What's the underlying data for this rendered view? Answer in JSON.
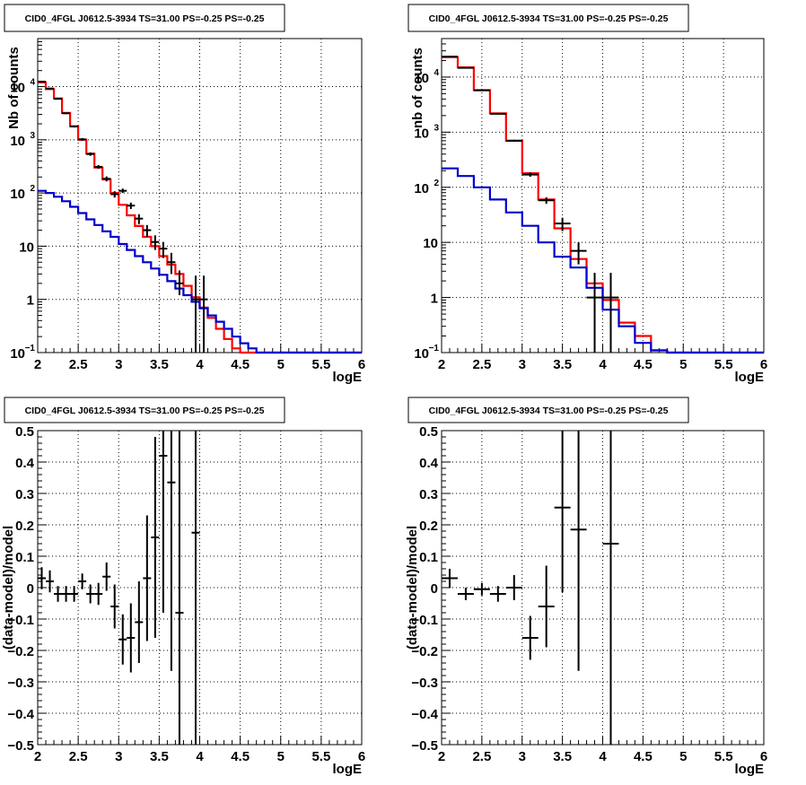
{
  "chart_data": [
    {
      "type": "line",
      "title": "CID0_4FGL J0612.5-3934 TS=31.00 PS=-0.25 PS=-0.25",
      "xlabel": "logE",
      "ylabel": "Nb of counts",
      "xlim": [
        2,
        6
      ],
      "ylim": [
        0.1,
        80000
      ],
      "yscale": "log",
      "grid": true,
      "x_ticks": [
        "2",
        "2.5",
        "3",
        "3.5",
        "4",
        "4.5",
        "5",
        "5.5",
        "6"
      ],
      "y_ticks": [
        {
          "value": 0.1,
          "label": "10",
          "exp": "−1"
        },
        {
          "value": 1,
          "label": "1",
          "exp": ""
        },
        {
          "value": 10,
          "label": "10",
          "exp": ""
        },
        {
          "value": 100,
          "label": "10",
          "exp": "2"
        },
        {
          "value": 1000,
          "label": "10",
          "exp": "3"
        },
        {
          "value": 10000,
          "label": "10",
          "exp": "4"
        }
      ],
      "bin_edges": [
        2.0,
        2.1,
        2.2,
        2.3,
        2.4,
        2.5,
        2.6,
        2.7,
        2.8,
        2.9,
        3.0,
        3.1,
        3.2,
        3.3,
        3.4,
        3.5,
        3.6,
        3.7,
        3.8,
        3.9,
        4.0,
        4.1,
        4.2,
        4.3,
        4.4,
        4.5,
        4.6,
        4.7,
        4.8,
        4.9,
        5.0,
        5.1,
        5.2,
        5.3,
        5.4,
        5.5,
        5.6,
        5.7,
        5.8,
        5.9,
        6.0
      ],
      "series": [
        {
          "style": "step",
          "color": "#ff0000",
          "values": [
            12000,
            9000,
            6000,
            3200,
            1800,
            1000,
            550,
            300,
            180,
            100,
            60,
            38,
            24,
            15,
            10,
            6.5,
            4.5,
            3,
            1.8,
            1.1,
            0.7,
            0.45,
            0.28,
            0.18,
            0.12,
            0.1,
            0.1,
            0.1,
            0.1,
            0.1,
            0.1,
            0.1,
            0.1,
            0.1,
            0.1,
            0.1,
            0.1,
            0.1,
            0.1,
            0.1
          ]
        },
        {
          "style": "step",
          "color": "#0000cc",
          "values": [
            110,
            100,
            85,
            70,
            55,
            42,
            32,
            25,
            19,
            15,
            11,
            8.5,
            6.5,
            5,
            3.8,
            2.9,
            2.2,
            1.6,
            1.2,
            0.9,
            0.68,
            0.5,
            0.38,
            0.28,
            0.2,
            0.15,
            0.12,
            0.1,
            0.1,
            0.1,
            0.1,
            0.1,
            0.1,
            0.1,
            0.1,
            0.1,
            0.1,
            0.1,
            0.1,
            0.1
          ]
        },
        {
          "style": "points",
          "color": "#000000",
          "x": [
            2.05,
            2.15,
            2.25,
            2.35,
            2.45,
            2.55,
            2.65,
            2.75,
            2.85,
            2.95,
            3.05,
            3.15,
            3.25,
            3.35,
            3.45,
            3.55,
            3.65,
            3.75,
            3.95,
            4.05
          ],
          "y": [
            12400,
            9200,
            5900,
            3150,
            1780,
            1020,
            540,
            310,
            185,
            95,
            110,
            58,
            33,
            20,
            12,
            9,
            5,
            2,
            1,
            1
          ],
          "err_lo": [
            12200,
            9000,
            5750,
            3040,
            1700,
            960,
            500,
            285,
            165,
            82,
            100,
            50,
            26,
            15,
            8.5,
            6,
            3,
            1.2,
            1,
            1
          ],
          "err_hi": [
            12600,
            9400,
            6050,
            3260,
            1860,
            1080,
            580,
            335,
            205,
            108,
            121,
            66,
            40,
            25,
            16,
            12,
            7.5,
            3.5,
            2.8,
            2.8
          ]
        }
      ]
    },
    {
      "type": "line",
      "title": "CID0_4FGL J0612.5-3934 TS=31.00 PS=-0.25 PS=-0.25",
      "xlabel": "logE",
      "ylabel": "nb of counts",
      "xlim": [
        2,
        6
      ],
      "ylim": [
        0.1,
        50000
      ],
      "yscale": "log",
      "grid": true,
      "x_ticks": [
        "2",
        "2.5",
        "3",
        "3.5",
        "4",
        "4.5",
        "5",
        "5.5",
        "6"
      ],
      "y_ticks": [
        {
          "value": 0.1,
          "label": "10",
          "exp": "−1"
        },
        {
          "value": 1,
          "label": "1",
          "exp": ""
        },
        {
          "value": 10,
          "label": "10",
          "exp": ""
        },
        {
          "value": 100,
          "label": "10",
          "exp": "2"
        },
        {
          "value": 1000,
          "label": "10",
          "exp": "3"
        },
        {
          "value": 10000,
          "label": "10",
          "exp": "4"
        }
      ],
      "bin_edges": [
        2.0,
        2.2,
        2.4,
        2.6,
        2.8,
        3.0,
        3.2,
        3.4,
        3.6,
        3.8,
        4.0,
        4.2,
        4.4,
        4.6,
        4.8,
        5.0,
        5.2,
        5.4,
        5.6,
        5.8,
        6.0
      ],
      "series": [
        {
          "style": "step",
          "color": "#ff0000",
          "values": [
            23000,
            15000,
            5800,
            2200,
            700,
            180,
            60,
            18,
            5,
            1.8,
            0.9,
            0.35,
            0.2,
            0.11,
            0.1,
            0.1,
            0.1,
            0.1,
            0.1,
            0.1
          ]
        },
        {
          "style": "step",
          "color": "#0000cc",
          "values": [
            220,
            160,
            100,
            60,
            35,
            20,
            10,
            5.5,
            3.5,
            1.5,
            0.6,
            0.3,
            0.15,
            0.11,
            0.1,
            0.1,
            0.1,
            0.1,
            0.1,
            0.1
          ]
        },
        {
          "style": "points",
          "color": "#000000",
          "x": [
            2.1,
            2.3,
            2.5,
            2.7,
            2.9,
            3.1,
            3.3,
            3.5,
            3.7,
            3.9,
            4.1
          ],
          "y": [
            23500,
            14700,
            5750,
            2150,
            700,
            170,
            58,
            22,
            7,
            1,
            1
          ],
          "err_lo": [
            23300,
            14500,
            5650,
            2090,
            670,
            155,
            50,
            16,
            4,
            1,
            1
          ],
          "err_hi": [
            23700,
            14900,
            5850,
            2210,
            730,
            185,
            66,
            28,
            10,
            2.8,
            2.8
          ]
        }
      ]
    },
    {
      "type": "scatter",
      "title": "CID0_4FGL J0612.5-3934 TS=31.00 PS=-0.25 PS=-0.25",
      "xlabel": "logE",
      "ylabel": "(data-model)/model",
      "xlim": [
        2,
        6
      ],
      "ylim": [
        -0.5,
        0.5
      ],
      "grid": true,
      "x_ticks": [
        "2",
        "2.5",
        "3",
        "3.5",
        "4",
        "4.5",
        "5",
        "5.5",
        "6"
      ],
      "y_ticks": [
        "−0.5",
        "−0.4",
        "−0.3",
        "−0.2",
        "−0.1",
        "0",
        "0.1",
        "0.2",
        "0.3",
        "0.4",
        "0.5"
      ],
      "series": [
        {
          "style": "points",
          "color": "#000000",
          "x": [
            2.05,
            2.15,
            2.25,
            2.35,
            2.45,
            2.55,
            2.65,
            2.75,
            2.85,
            2.95,
            3.05,
            3.15,
            3.25,
            3.35,
            3.45,
            3.55,
            3.65,
            3.75,
            3.95
          ],
          "y": [
            0.03,
            0.02,
            -0.02,
            -0.02,
            -0.02,
            0.02,
            -0.02,
            -0.02,
            0.035,
            -0.06,
            -0.165,
            -0.16,
            -0.11,
            0.03,
            0.16,
            0.42,
            0.335,
            -0.08,
            0.175
          ],
          "err": [
            0.035,
            0.035,
            0.025,
            0.025,
            0.025,
            0.025,
            0.03,
            0.035,
            0.045,
            0.07,
            0.08,
            0.11,
            0.13,
            0.2,
            0.32,
            0.5,
            0.6,
            0.9,
            1.0
          ]
        }
      ]
    },
    {
      "type": "scatter",
      "title": "CID0_4FGL J0612.5-3934 TS=31.00 PS=-0.25 PS=-0.25",
      "xlabel": "logE",
      "ylabel": "(data-model)/model",
      "xlim": [
        2,
        6
      ],
      "ylim": [
        -0.5,
        0.5
      ],
      "grid": true,
      "x_ticks": [
        "2",
        "2.5",
        "3",
        "3.5",
        "4",
        "4.5",
        "5",
        "5.5",
        "6"
      ],
      "y_ticks": [
        "−0.5",
        "−0.4",
        "−0.3",
        "−0.2",
        "−0.1",
        "0",
        "0.1",
        "0.2",
        "0.3",
        "0.4",
        "0.5"
      ],
      "series": [
        {
          "style": "points",
          "color": "#000000",
          "x": [
            2.1,
            2.3,
            2.5,
            2.7,
            2.9,
            3.1,
            3.3,
            3.5,
            3.7,
            4.1
          ],
          "y": [
            0.03,
            -0.02,
            -0.005,
            -0.02,
            0.0,
            -0.16,
            -0.06,
            0.255,
            0.185,
            0.14
          ],
          "err": [
            0.03,
            0.02,
            0.02,
            0.025,
            0.04,
            0.07,
            0.13,
            0.27,
            0.45,
            1.0
          ]
        }
      ]
    }
  ]
}
